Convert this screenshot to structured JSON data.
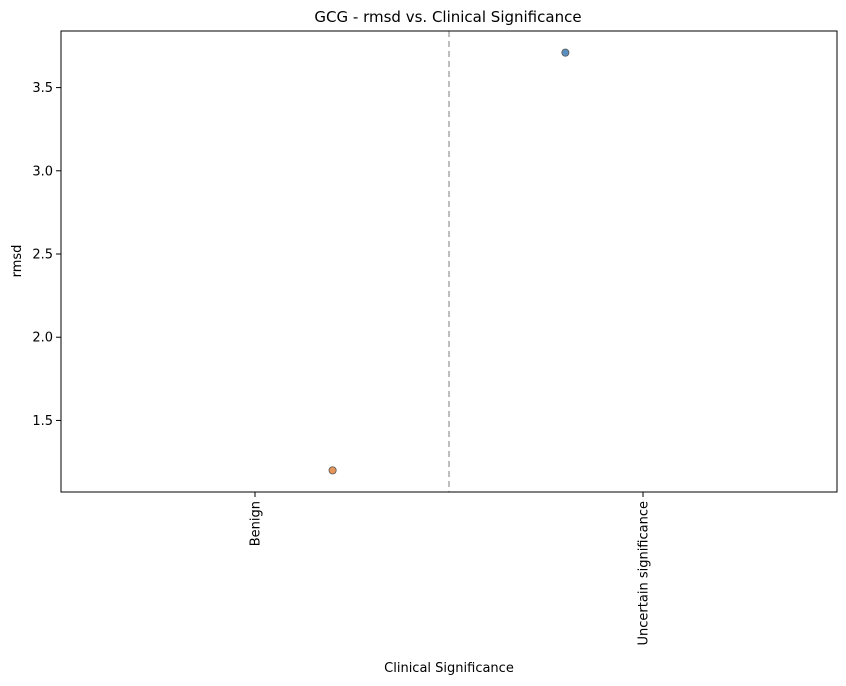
{
  "chart_data": {
    "type": "scatter",
    "title": "GCG - rmsd vs. Clinical Significance",
    "xlabel": "Clinical Significance",
    "ylabel": "rmsd",
    "categories": [
      "Benign",
      "Uncertain significance"
    ],
    "ylim": [
      1.07,
      3.84
    ],
    "yticks": [
      1.5,
      2.0,
      2.5,
      3.0,
      3.5
    ],
    "ytick_labels": [
      "1.5",
      "2.0",
      "2.5",
      "3.0",
      "3.5"
    ],
    "points": [
      {
        "category": "Uncertain significance",
        "jitter": -0.2,
        "y": 3.71,
        "color": "#5b8fbf"
      },
      {
        "category": "Benign",
        "jitter": 0.2,
        "y": 1.2,
        "color": "#e8955a"
      }
    ],
    "category_separator": "dashed",
    "grid": false,
    "legend": "none"
  }
}
